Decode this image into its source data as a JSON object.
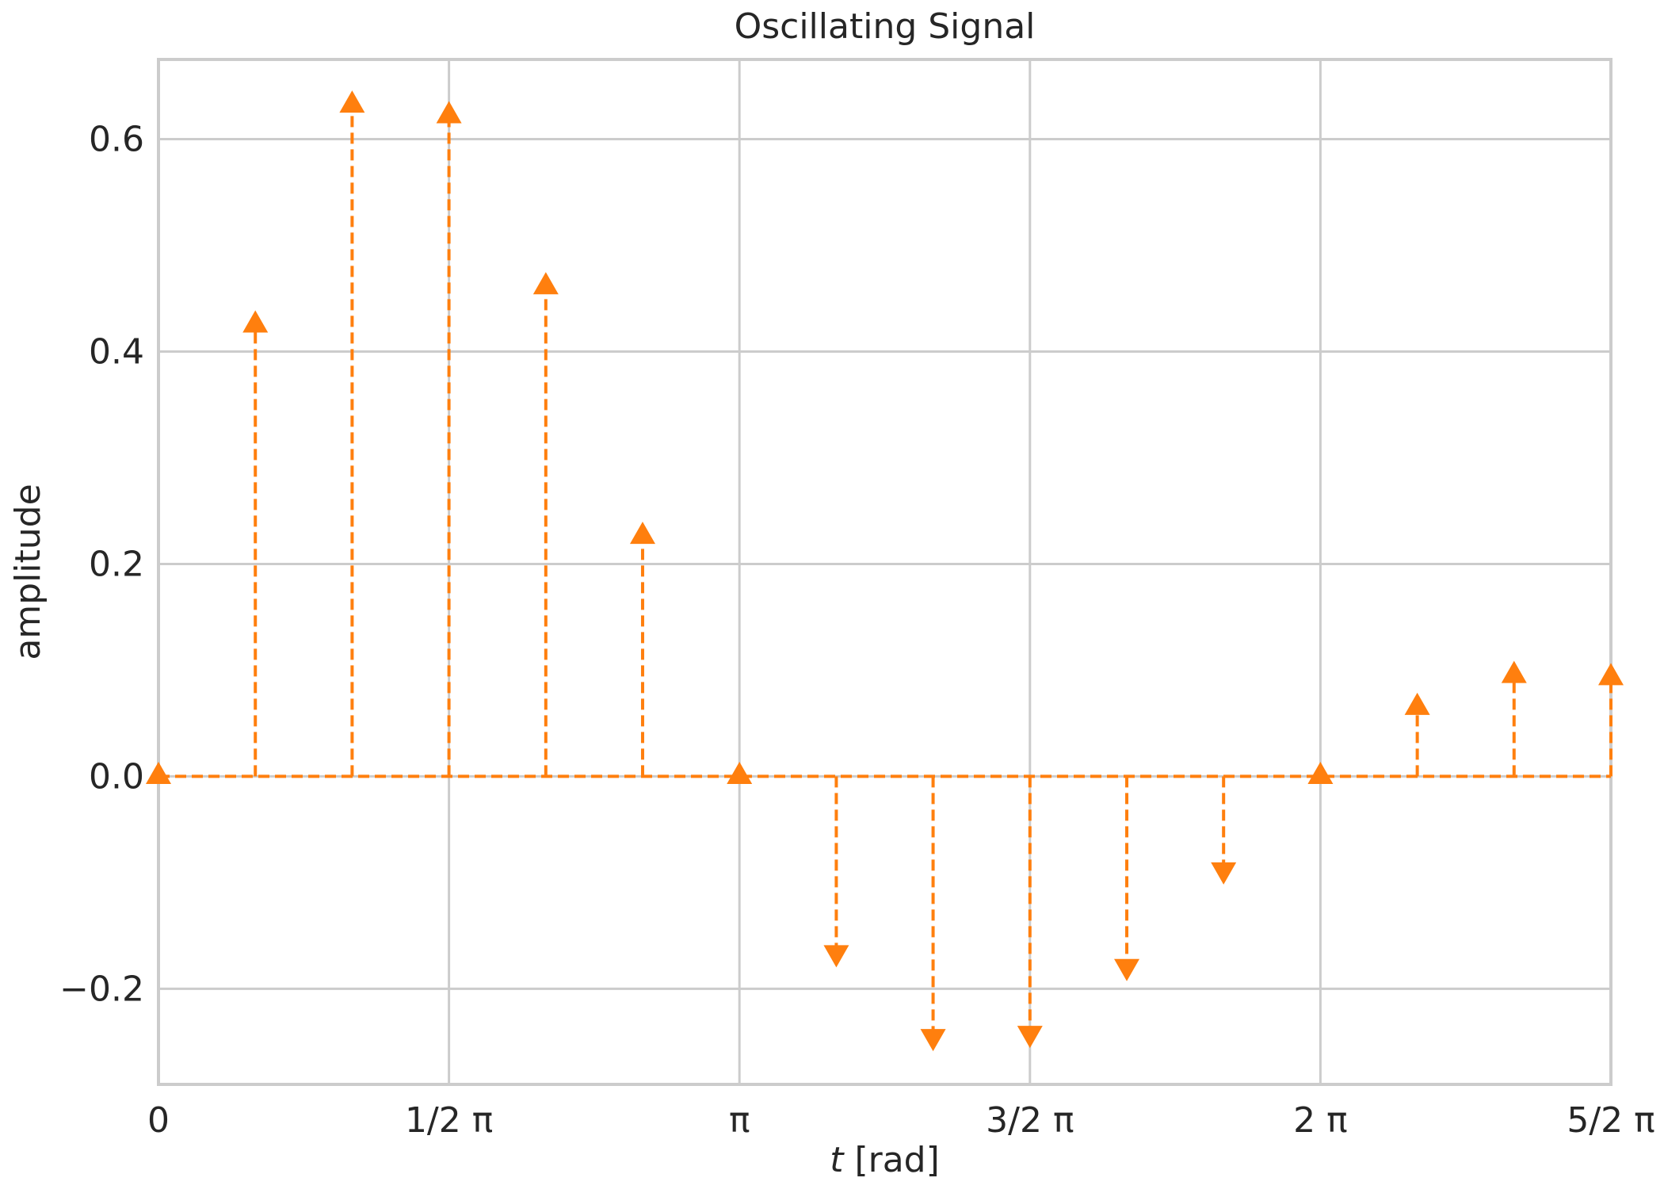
{
  "chart_data": {
    "type": "stem",
    "title": "Oscillating Signal",
    "xlabel_italic": "t",
    "xlabel_rest": " [rad]",
    "ylabel": "amplitude",
    "x_unit": "rad (multiples of π)",
    "xlim_pi": [
      0,
      2.5
    ],
    "ylim": [
      -0.29,
      0.675
    ],
    "x_ticks": [
      {
        "pi_multiple": 0,
        "label": "0"
      },
      {
        "pi_multiple": 0.5,
        "label": "1/2 π"
      },
      {
        "pi_multiple": 1,
        "label": "π"
      },
      {
        "pi_multiple": 1.5,
        "label": "3/2 π"
      },
      {
        "pi_multiple": 2,
        "label": "2 π"
      },
      {
        "pi_multiple": 2.5,
        "label": "5/2 π"
      }
    ],
    "y_ticks": [
      {
        "value": -0.2,
        "label": "−0.2"
      },
      {
        "value": 0.0,
        "label": "0.0"
      },
      {
        "value": 0.2,
        "label": "0.2"
      },
      {
        "value": 0.4,
        "label": "0.4"
      },
      {
        "value": 0.6,
        "label": "0.6"
      }
    ],
    "grid": true,
    "baseline": 0,
    "marker_style": "triangle pointing in sign direction",
    "color": "#ff7f0e",
    "x_pi": [
      0,
      0.1667,
      0.3333,
      0.5,
      0.6667,
      0.8333,
      1.0,
      1.1667,
      1.3333,
      1.5,
      1.6667,
      1.8333,
      2.0,
      2.1667,
      2.3333,
      2.5
    ],
    "values": [
      0.0,
      0.425,
      0.632,
      0.622,
      0.461,
      0.226,
      0.0,
      -0.166,
      -0.245,
      -0.242,
      -0.179,
      -0.088,
      0.0,
      0.065,
      0.095,
      0.093
    ]
  },
  "colors": {
    "stem": "#ff7f0e",
    "grid": "#cccccc",
    "text": "#262626",
    "background": "#ffffff"
  }
}
